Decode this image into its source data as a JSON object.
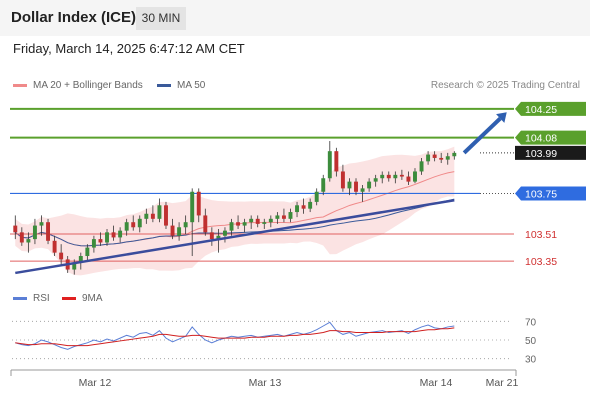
{
  "header": {
    "title": "Dollar Index (ICE)",
    "timeframe": "30 MIN"
  },
  "datetime": "Friday, March 14, 2025 6:47:12 AM CET",
  "legend": {
    "items": [
      {
        "label": "MA 20 + Bollinger Bands",
        "color": "#f08a8a"
      },
      {
        "label": "MA 50",
        "color": "#3a5a9a"
      }
    ],
    "credit": "Research © 2025 Trading Central"
  },
  "rsi_legend": {
    "items": [
      {
        "label": "RSI",
        "color": "#5b7fd6"
      },
      {
        "label": "9MA",
        "color": "#e02020"
      }
    ]
  },
  "colors": {
    "up": "#3c8c3c",
    "down": "#c03030",
    "green_level": "#5aa02c",
    "blue_level": "#2f6ce0",
    "red_level": "#e06060",
    "trend": "#3a4c9c",
    "band_fill": "#fbe3e3"
  },
  "chart_data": [
    {
      "type": "candlestick",
      "xaxis_ticks": [
        "Mar 12",
        "Mar 13",
        "Mar 14",
        "Mar 21"
      ],
      "ylim": [
        103.25,
        104.35
      ],
      "levels": [
        {
          "value": 104.25,
          "label": "104.25",
          "kind": "resistance"
        },
        {
          "value": 104.08,
          "label": "104.08",
          "kind": "resistance"
        },
        {
          "value": 103.99,
          "label": "103.99",
          "kind": "last-price"
        },
        {
          "value": 103.75,
          "label": "103.75",
          "kind": "pivot"
        },
        {
          "value": 103.51,
          "label": "103.51",
          "kind": "support"
        },
        {
          "value": 103.35,
          "label": "103.35",
          "kind": "support"
        }
      ],
      "trendline": {
        "from": [
          0.0,
          103.28
        ],
        "to": [
          67.0,
          103.71
        ]
      },
      "target_arrow": {
        "from": [
          68.5,
          103.99
        ],
        "to": [
          75.0,
          104.23
        ]
      },
      "candles": [
        [
          103.56,
          103.62,
          103.48,
          103.52
        ],
        [
          103.52,
          103.55,
          103.44,
          103.46
        ],
        [
          103.46,
          103.52,
          103.4,
          103.48
        ],
        [
          103.48,
          103.6,
          103.45,
          103.56
        ],
        [
          103.56,
          103.62,
          103.5,
          103.58
        ],
        [
          103.58,
          103.6,
          103.45,
          103.47
        ],
        [
          103.47,
          103.5,
          103.38,
          103.4
        ],
        [
          103.4,
          103.45,
          103.33,
          103.36
        ],
        [
          103.36,
          103.38,
          103.28,
          103.3
        ],
        [
          103.3,
          103.36,
          103.27,
          103.34
        ],
        [
          103.34,
          103.4,
          103.3,
          103.38
        ],
        [
          103.38,
          103.45,
          103.35,
          103.43
        ],
        [
          103.43,
          103.5,
          103.4,
          103.48
        ],
        [
          103.48,
          103.52,
          103.44,
          103.46
        ],
        [
          103.46,
          103.54,
          103.44,
          103.52
        ],
        [
          103.52,
          103.56,
          103.47,
          103.49
        ],
        [
          103.49,
          103.55,
          103.46,
          103.53
        ],
        [
          103.53,
          103.6,
          103.5,
          103.58
        ],
        [
          103.58,
          103.62,
          103.53,
          103.55
        ],
        [
          103.55,
          103.62,
          103.52,
          103.6
        ],
        [
          103.6,
          103.66,
          103.57,
          103.63
        ],
        [
          103.63,
          103.68,
          103.58,
          103.6
        ],
        [
          103.6,
          103.72,
          103.58,
          103.68
        ],
        [
          103.68,
          103.7,
          103.54,
          103.56
        ],
        [
          103.56,
          103.6,
          103.48,
          103.5
        ],
        [
          103.5,
          103.58,
          103.47,
          103.55
        ],
        [
          103.55,
          103.62,
          103.51,
          103.58
        ],
        [
          103.58,
          103.78,
          103.38,
          103.76
        ],
        [
          103.76,
          103.78,
          103.58,
          103.62
        ],
        [
          103.62,
          103.66,
          103.5,
          103.52
        ],
        [
          103.52,
          103.55,
          103.44,
          103.48
        ],
        [
          103.48,
          103.54,
          103.4,
          103.5
        ],
        [
          103.5,
          103.55,
          103.46,
          103.53
        ],
        [
          103.53,
          103.6,
          103.5,
          103.58
        ],
        [
          103.58,
          103.62,
          103.54,
          103.56
        ],
        [
          103.56,
          103.6,
          103.52,
          103.58
        ],
        [
          103.58,
          103.62,
          103.54,
          103.6
        ],
        [
          103.6,
          103.62,
          103.55,
          103.57
        ],
        [
          103.57,
          103.6,
          103.54,
          103.58
        ],
        [
          103.58,
          103.62,
          103.55,
          103.6
        ],
        [
          103.6,
          103.64,
          103.57,
          103.62
        ],
        [
          103.62,
          103.66,
          103.58,
          103.6
        ],
        [
          103.6,
          103.66,
          103.58,
          103.64
        ],
        [
          103.64,
          103.7,
          103.61,
          103.68
        ],
        [
          103.68,
          103.72,
          103.63,
          103.66
        ],
        [
          103.66,
          103.72,
          103.64,
          103.7
        ],
        [
          103.7,
          103.78,
          103.68,
          103.76
        ],
        [
          103.76,
          103.86,
          103.74,
          103.84
        ],
        [
          103.84,
          104.06,
          103.82,
          104.0
        ],
        [
          104.0,
          104.02,
          103.85,
          103.88
        ],
        [
          103.88,
          103.92,
          103.76,
          103.78
        ],
        [
          103.78,
          103.84,
          103.74,
          103.82
        ],
        [
          103.82,
          103.84,
          103.74,
          103.76
        ],
        [
          103.76,
          103.8,
          103.7,
          103.78
        ],
        [
          103.78,
          103.84,
          103.76,
          103.82
        ],
        [
          103.82,
          103.86,
          103.79,
          103.84
        ],
        [
          103.84,
          103.88,
          103.81,
          103.86
        ],
        [
          103.86,
          103.88,
          103.82,
          103.84
        ],
        [
          103.84,
          103.88,
          103.81,
          103.86
        ],
        [
          103.86,
          103.89,
          103.83,
          103.85
        ],
        [
          103.85,
          103.88,
          103.8,
          103.82
        ],
        [
          103.82,
          103.9,
          103.81,
          103.88
        ],
        [
          103.88,
          103.96,
          103.86,
          103.94
        ],
        [
          103.94,
          104.0,
          103.92,
          103.98
        ],
        [
          103.98,
          104.0,
          103.94,
          103.96
        ],
        [
          103.96,
          103.99,
          103.93,
          103.95
        ],
        [
          103.95,
          103.99,
          103.92,
          103.97
        ],
        [
          103.97,
          104.0,
          103.95,
          103.99
        ]
      ],
      "projection_slots": 8
    },
    {
      "type": "line",
      "title": "RSI",
      "ylim": [
        20,
        80
      ],
      "yticks": [
        30,
        50,
        70
      ],
      "rsi": [
        47,
        45,
        44,
        46,
        50,
        48,
        45,
        42,
        40,
        43,
        45,
        47,
        50,
        48,
        51,
        49,
        52,
        55,
        53,
        57,
        58,
        55,
        60,
        52,
        48,
        51,
        54,
        64,
        56,
        50,
        47,
        50,
        52,
        54,
        53,
        54,
        55,
        53,
        54,
        55,
        56,
        54,
        56,
        58,
        56,
        58,
        61,
        65,
        69,
        60,
        56,
        58,
        54,
        56,
        58,
        59,
        60,
        58,
        59,
        60,
        57,
        61,
        64,
        66,
        63,
        62,
        64,
        65
      ],
      "ma9": [
        47,
        46,
        45,
        45,
        46,
        46,
        46,
        45,
        44,
        44,
        44,
        44,
        45,
        46,
        47,
        48,
        49,
        50,
        51,
        52,
        53,
        54,
        56,
        56,
        55,
        54,
        54,
        55,
        55,
        54,
        53,
        52,
        52,
        52,
        52,
        52,
        53,
        53,
        53,
        54,
        54,
        54,
        55,
        55,
        56,
        56,
        57,
        58,
        60,
        60,
        59,
        59,
        58,
        58,
        58,
        58,
        58,
        59,
        59,
        59,
        59,
        59,
        60,
        61,
        61,
        62,
        62,
        63
      ]
    }
  ]
}
